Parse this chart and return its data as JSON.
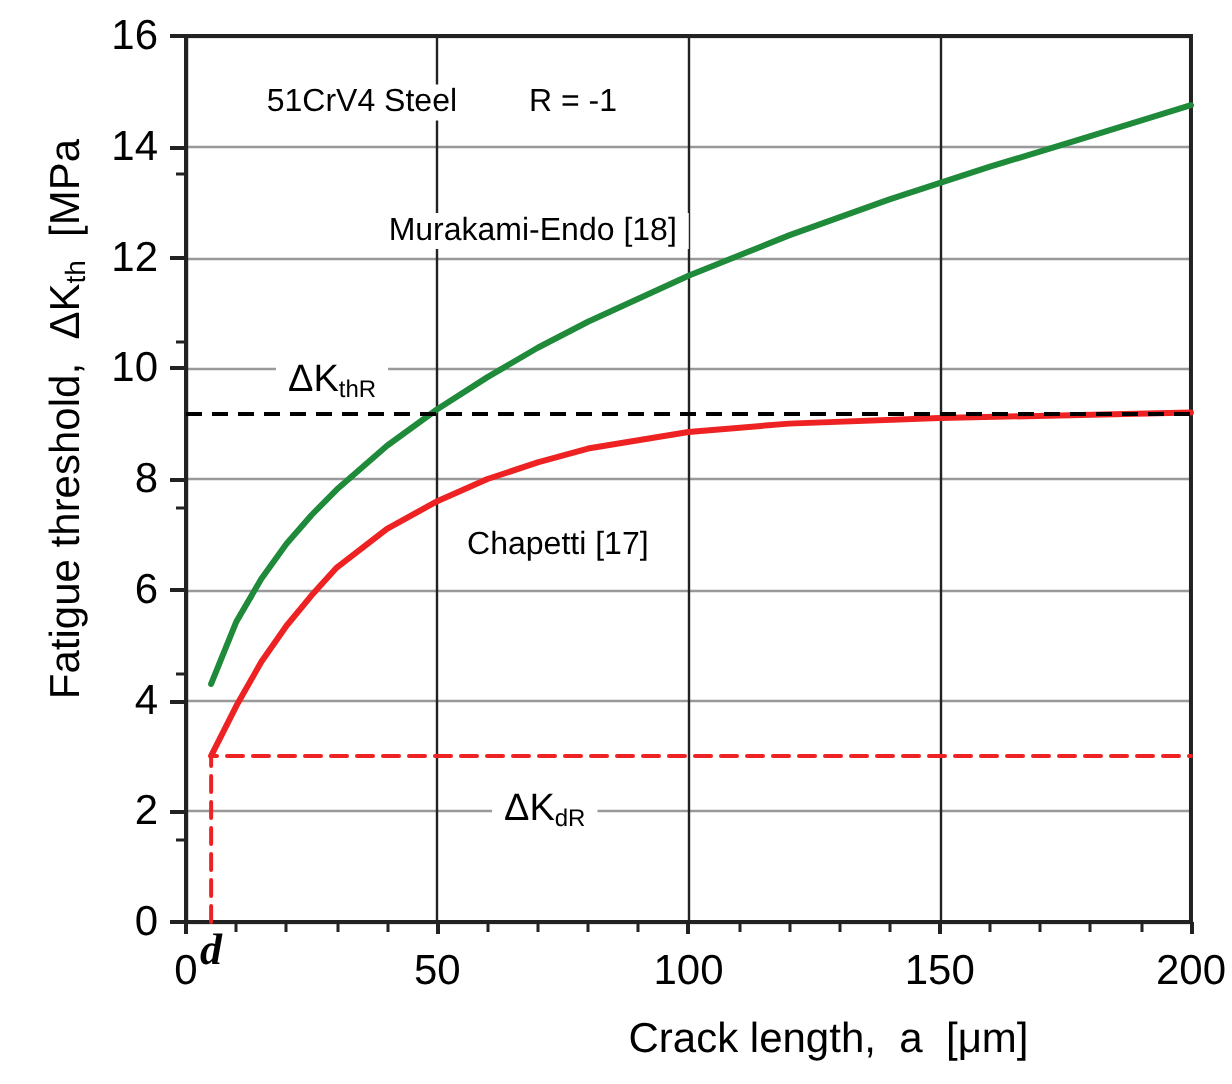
{
  "chart_data": {
    "type": "line",
    "xlabel": "Crack length,  a  [μm]",
    "ylabel": "Fatigue threshold,  ΔK$_{th}$  [MPa",
    "xlim": [
      0,
      200
    ],
    "xticks": [
      0,
      50,
      100,
      150,
      200
    ],
    "ylim": [
      0,
      16
    ],
    "yticks": [
      0,
      2,
      4,
      6,
      8,
      10,
      12,
      14,
      16
    ],
    "grid": true,
    "marker": "none",
    "line_style": "solid",
    "series": [
      {
        "color": "#1e8a3a",
        "x": [
          5,
          10,
          15,
          20,
          25,
          30,
          40,
          50,
          60,
          70,
          80,
          100,
          120,
          140,
          160,
          180,
          200
        ],
        "values": [
          4.3,
          5.42,
          6.2,
          6.83,
          7.35,
          7.81,
          8.6,
          9.26,
          9.84,
          10.37,
          10.84,
          11.67,
          12.4,
          13.05,
          13.64,
          14.19,
          14.75
        ]
      },
      {
        "color": "#ee2222",
        "x": [
          5,
          10,
          15,
          20,
          25,
          30,
          40,
          50,
          60,
          70,
          80,
          100,
          120,
          150,
          200
        ],
        "values": [
          3.0,
          3.9,
          4.7,
          5.35,
          5.9,
          6.4,
          7.1,
          7.6,
          8.0,
          8.3,
          8.55,
          8.85,
          9.0,
          9.1,
          9.2
        ]
      },
      {
        "color": "#ee2222",
        "line_style": "dashed",
        "x": [
          5,
          5,
          200
        ],
        "values": [
          0,
          3,
          3
        ]
      }
    ],
    "ref_lines": [
      {
        "axis": "y",
        "value": 9.2,
        "label": "ΔK$_{thR}$",
        "color": "#000000",
        "line_style": "dashed"
      }
    ],
    "annotations": [
      "51CrV4 Steel",
      "R = -1",
      "Murakami-Endo [18]",
      "Chapetti [17]",
      "ΔK$_{dR}$",
      "d"
    ]
  }
}
